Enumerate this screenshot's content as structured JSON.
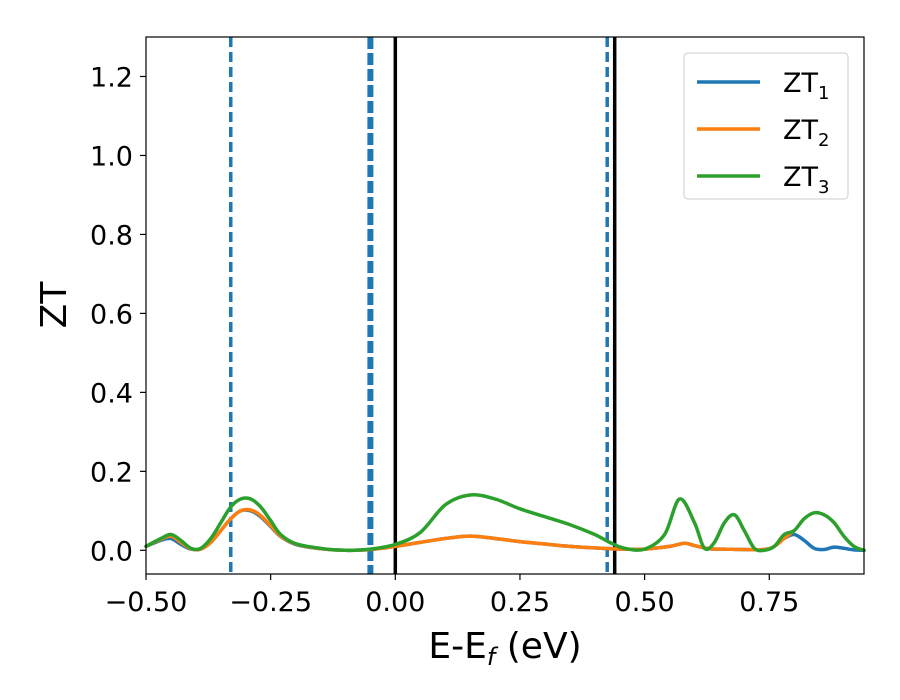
{
  "chart_data": {
    "type": "line",
    "xlabel": "E-E",
    "xlabel_sub": "f",
    "xlabel_unit": " (eV)",
    "ylabel": "ZT",
    "xlim": [
      -0.5,
      0.94
    ],
    "ylim": [
      -0.06,
      1.3
    ],
    "x_ticks": [
      -0.5,
      -0.25,
      0.0,
      0.25,
      0.5,
      0.75
    ],
    "x_tick_labels": [
      "−0.50",
      "−0.25",
      "0.00",
      "0.25",
      "0.50",
      "0.75"
    ],
    "y_ticks": [
      0.0,
      0.2,
      0.4,
      0.6,
      0.8,
      1.0,
      1.2
    ],
    "y_tick_labels": [
      "0.0",
      "0.2",
      "0.4",
      "0.6",
      "0.8",
      "1.0",
      "1.2"
    ],
    "grid": false,
    "legend_position": "top-right",
    "vertical_lines": [
      {
        "x": -0.33,
        "style": "dashed",
        "color": "#1f77b4",
        "weight": "normal"
      },
      {
        "x": -0.05,
        "style": "dashed",
        "color": "#1f77b4",
        "weight": "bold"
      },
      {
        "x": 0.0,
        "style": "solid",
        "color": "#000000",
        "weight": "normal"
      },
      {
        "x": 0.425,
        "style": "dashed",
        "color": "#1f77b4",
        "weight": "normal"
      },
      {
        "x": 0.44,
        "style": "solid",
        "color": "#000000",
        "weight": "normal"
      }
    ],
    "series": [
      {
        "name": "ZT",
        "name_sub": "1",
        "color": "#1f77b4",
        "x": [
          -0.5,
          -0.47,
          -0.45,
          -0.43,
          -0.41,
          -0.39,
          -0.37,
          -0.35,
          -0.33,
          -0.31,
          -0.29,
          -0.27,
          -0.25,
          -0.23,
          -0.2,
          -0.15,
          -0.1,
          -0.05,
          0.0,
          0.05,
          0.1,
          0.15,
          0.2,
          0.25,
          0.3,
          0.35,
          0.4,
          0.45,
          0.5,
          0.55,
          0.58,
          0.6,
          0.63,
          0.66,
          0.7,
          0.75,
          0.78,
          0.8,
          0.82,
          0.84,
          0.86,
          0.88,
          0.9,
          0.92,
          0.94
        ],
        "y": [
          0.01,
          0.025,
          0.03,
          0.015,
          0.003,
          0.003,
          0.02,
          0.05,
          0.08,
          0.1,
          0.1,
          0.085,
          0.06,
          0.035,
          0.015,
          0.004,
          0.0,
          0.002,
          0.01,
          0.02,
          0.03,
          0.036,
          0.03,
          0.022,
          0.016,
          0.01,
          0.006,
          0.003,
          0.003,
          0.01,
          0.018,
          0.012,
          0.004,
          0.003,
          0.002,
          0.004,
          0.03,
          0.04,
          0.025,
          0.005,
          0.002,
          0.008,
          0.005,
          0.001,
          0.0
        ]
      },
      {
        "name": "ZT",
        "name_sub": "2",
        "color": "#ff7f0e",
        "x": [
          -0.5,
          -0.47,
          -0.45,
          -0.43,
          -0.41,
          -0.39,
          -0.37,
          -0.35,
          -0.33,
          -0.31,
          -0.29,
          -0.27,
          -0.25,
          -0.23,
          -0.2,
          -0.15,
          -0.1,
          -0.05,
          0.0,
          0.05,
          0.1,
          0.15,
          0.2,
          0.25,
          0.3,
          0.35,
          0.4,
          0.45,
          0.5,
          0.55,
          0.58,
          0.6,
          0.63,
          0.66,
          0.7,
          0.75,
          0.78,
          0.8
        ],
        "y": [
          0.01,
          0.028,
          0.036,
          0.02,
          0.004,
          0.003,
          0.02,
          0.05,
          0.08,
          0.1,
          0.102,
          0.088,
          0.062,
          0.036,
          0.016,
          0.004,
          0.0,
          0.002,
          0.01,
          0.02,
          0.03,
          0.036,
          0.03,
          0.022,
          0.016,
          0.01,
          0.006,
          0.003,
          0.003,
          0.01,
          0.018,
          0.012,
          0.004,
          0.003,
          0.002,
          0.004,
          0.03,
          0.05
        ]
      },
      {
        "name": "ZT",
        "name_sub": "3",
        "color": "#2ca02c",
        "x": [
          -0.5,
          -0.47,
          -0.45,
          -0.43,
          -0.41,
          -0.39,
          -0.37,
          -0.35,
          -0.33,
          -0.31,
          -0.29,
          -0.27,
          -0.25,
          -0.23,
          -0.2,
          -0.15,
          -0.1,
          -0.05,
          0.0,
          0.05,
          0.1,
          0.15,
          0.2,
          0.25,
          0.3,
          0.35,
          0.4,
          0.43,
          0.46,
          0.5,
          0.54,
          0.57,
          0.6,
          0.62,
          0.64,
          0.66,
          0.68,
          0.7,
          0.72,
          0.74,
          0.76,
          0.78,
          0.8,
          0.82,
          0.84,
          0.86,
          0.88,
          0.9,
          0.92,
          0.94
        ],
        "y": [
          0.01,
          0.03,
          0.04,
          0.025,
          0.005,
          0.005,
          0.03,
          0.07,
          0.11,
          0.13,
          0.13,
          0.11,
          0.075,
          0.04,
          0.017,
          0.005,
          0.0,
          0.003,
          0.015,
          0.045,
          0.115,
          0.14,
          0.13,
          0.105,
          0.085,
          0.065,
          0.04,
          0.02,
          0.005,
          0.003,
          0.04,
          0.13,
          0.07,
          0.005,
          0.02,
          0.07,
          0.09,
          0.05,
          0.005,
          0.0,
          0.01,
          0.04,
          0.05,
          0.08,
          0.095,
          0.09,
          0.07,
          0.035,
          0.01,
          0.0
        ]
      }
    ]
  }
}
